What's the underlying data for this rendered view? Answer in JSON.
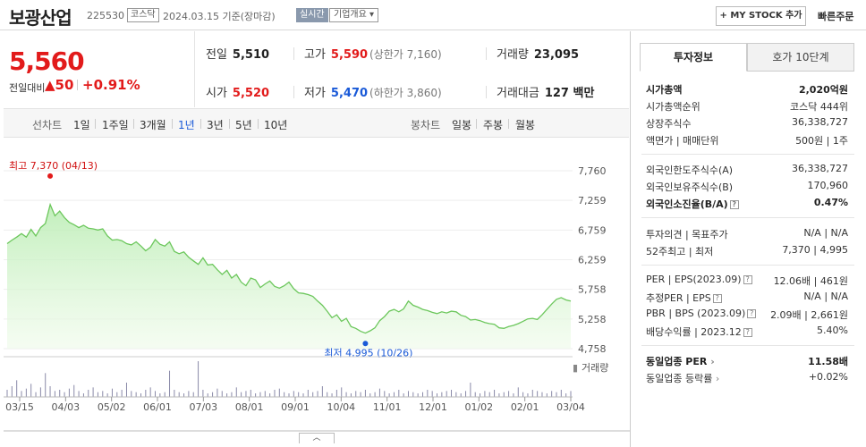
{
  "header": {
    "company_name": "보광산업",
    "stock_code": "225530",
    "market": "코스닥",
    "as_of": "2024.03.15 기준(장마감)",
    "realtime_label": "실시간",
    "company_info_label": "기업개요 ▾",
    "mystock_label": "+ MY STOCK 추가",
    "quick_order_label": "빠른주문"
  },
  "quote": {
    "price": "5,560",
    "change_label": "전일대비",
    "change": "▲50",
    "change_pct": "+0.91%"
  },
  "stats": {
    "prev_close_label": "전일",
    "prev_close": "5,510",
    "high_label": "고가",
    "high": "5,590",
    "upper_limit": "(상한가 7,160)",
    "volume_label": "거래량",
    "volume": "23,095",
    "open_label": "시가",
    "open": "5,520",
    "low_label": "저가",
    "low": "5,470",
    "lower_limit": "(하한가 3,860)",
    "trade_value_label": "거래대금",
    "trade_value": "127 백만"
  },
  "period_tabs": {
    "line_label": "선차트",
    "line_items": [
      "1일",
      "1주일",
      "3개월",
      "1년",
      "3년",
      "5년",
      "10년"
    ],
    "selected": "1년",
    "candle_label": "봉차트",
    "candle_items": [
      "일봉",
      "주봉",
      "월봉"
    ]
  },
  "chart_data": {
    "type": "area",
    "y_ticks": [
      "7,760",
      "7,259",
      "6,759",
      "6,259",
      "5,758",
      "5,258",
      "4,758"
    ],
    "ylim": [
      4758,
      7760
    ],
    "x_tick_labels": [
      "03/15",
      "04/03",
      "05/02",
      "06/01",
      "07/03",
      "08/01",
      "09/01",
      "10/04",
      "11/01",
      "12/01",
      "01/02",
      "02/01",
      "03/04"
    ],
    "annotations": {
      "high": "최고 7,370 (04/13)",
      "low": "최저 4,995 (10/26)"
    },
    "volume_label": "거래량",
    "series": [
      {
        "values": [
          6530,
          6590,
          6640,
          6700,
          6640,
          6770,
          6660,
          6800,
          6870,
          7190,
          7000,
          7080,
          6970,
          6890,
          6850,
          6800,
          6840,
          6790,
          6780,
          6760,
          6780,
          6660,
          6590,
          6600,
          6580,
          6530,
          6510,
          6560,
          6490,
          6410,
          6470,
          6600,
          6520,
          6490,
          6560,
          6400,
          6360,
          6390,
          6300,
          6240,
          6180,
          6290,
          6170,
          6180,
          6090,
          6010,
          6080,
          5950,
          6010,
          5880,
          5820,
          5950,
          5920,
          5790,
          5850,
          5900,
          5810,
          5780,
          5820,
          5880,
          5770,
          5700,
          5690,
          5670,
          5640,
          5560,
          5490,
          5390,
          5280,
          5330,
          5220,
          5270,
          5130,
          5100,
          5050,
          5020,
          5060,
          5110,
          5230,
          5300,
          5390,
          5420,
          5380,
          5430,
          5560,
          5490,
          5460,
          5420,
          5400,
          5370,
          5350,
          5380,
          5360,
          5390,
          5380,
          5320,
          5300,
          5240,
          5250,
          5230,
          5200,
          5180,
          5170,
          5110,
          5100,
          5130,
          5150,
          5180,
          5220,
          5260,
          5270,
          5250,
          5330,
          5420,
          5510,
          5590,
          5620,
          5580,
          5560
        ]
      }
    ],
    "volume": [
      6,
      9,
      14,
      5,
      7,
      11,
      4,
      8,
      20,
      9,
      5,
      6,
      4,
      7,
      10,
      5,
      3,
      6,
      8,
      4,
      5,
      3,
      7,
      4,
      6,
      12,
      5,
      4,
      3,
      6,
      8,
      5,
      3,
      4,
      22,
      6,
      4,
      3,
      5,
      4,
      30,
      6,
      3,
      4,
      7,
      5,
      3,
      4,
      8,
      4,
      5,
      6,
      3,
      4,
      5,
      3,
      6,
      7,
      4,
      3,
      5,
      4,
      3,
      6,
      4,
      5,
      9,
      4,
      3,
      6,
      8,
      4,
      3,
      5,
      4,
      6,
      3,
      4,
      7,
      5,
      3,
      4,
      6,
      3,
      5,
      4,
      3,
      4,
      6,
      5,
      3,
      4,
      5,
      6,
      4,
      3,
      5,
      12,
      4,
      3,
      5,
      4,
      6,
      3,
      4,
      5,
      3,
      8,
      4,
      3,
      6,
      5,
      4,
      3,
      5,
      4,
      6,
      3,
      5
    ]
  },
  "investment_panel": {
    "tab_active": "투자정보",
    "tab_inactive": "호가 10단계",
    "market_cap_label": "시가총액",
    "market_cap": "2,020억원",
    "market_cap_rank_label": "시가총액순위",
    "market_cap_rank": "코스닥 444위",
    "shares_label": "상장주식수",
    "shares": "36,338,727",
    "par_label": "액면가 | 매매단위",
    "par": "500원 | 1주",
    "foreign_limit_label": "외국인한도주식수(A)",
    "foreign_limit": "36,338,727",
    "foreign_hold_label": "외국인보유주식수(B)",
    "foreign_hold": "170,960",
    "foreign_ratio_label": "외국인소진율(B/A)",
    "foreign_ratio": "0.47%",
    "opinion_label": "투자의견 | 목표주가",
    "opinion": "N/A | N/A",
    "range52_label": "52주최고 | 최저",
    "range52": "7,370 | 4,995",
    "per_label": "PER | EPS(2023.09)",
    "per": "12.06배 | 461원",
    "est_per_label": "추정PER | EPS",
    "est_per": "N/A | N/A",
    "pbr_label": "PBR | BPS (2023.09)",
    "pbr": "2.09배 | 2,661원",
    "div_label": "배당수익률 | 2023.12",
    "div": "5.40%",
    "ind_per_label": "동일업종 PER",
    "ind_per": "11.58배",
    "ind_rate_label": "동일업종 등락률",
    "ind_rate": "+0.02%"
  }
}
